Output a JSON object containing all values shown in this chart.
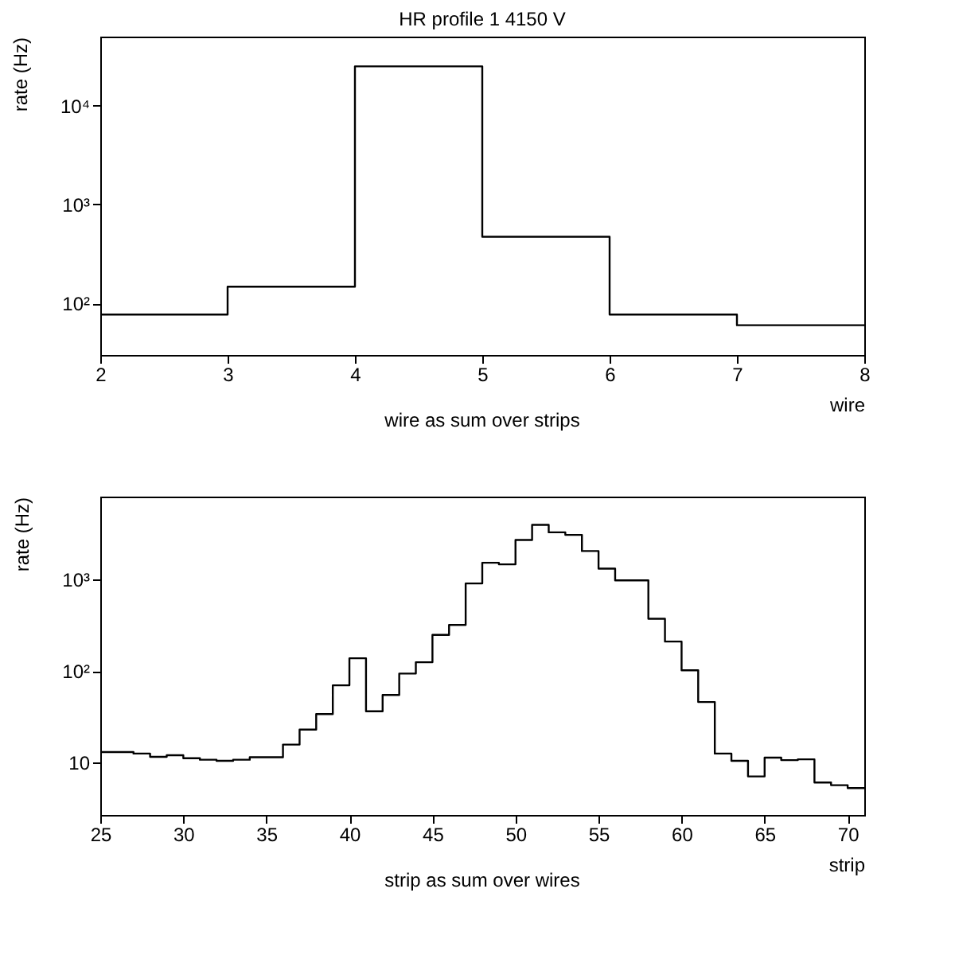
{
  "chart_data": [
    {
      "type": "histogram",
      "title": "HR profile 1 4150 V",
      "xlabel": "wire",
      "ylabel": "rate (Hz)",
      "annotations": [
        "wire as sum over strips"
      ],
      "log": "y",
      "bins": [
        2,
        3,
        4,
        5,
        6,
        7,
        8
      ],
      "values": [
        77,
        147,
        25000,
        471,
        77,
        60
      ],
      "xlim": [
        2,
        8
      ],
      "xticks": [
        2,
        3,
        4,
        5,
        6,
        7,
        8
      ],
      "ylim": [
        30,
        50000
      ],
      "yticks": [
        {
          "value": 100,
          "label": "10²"
        },
        {
          "value": 1000,
          "label": "10³"
        },
        {
          "value": 10000,
          "label": "10⁴"
        }
      ],
      "color": "#000000"
    },
    {
      "type": "histogram",
      "xlabel": "strip",
      "ylabel": "rate (Hz)",
      "annotations": [
        "strip as sum over wires"
      ],
      "log": "y",
      "bins": [
        25,
        26,
        27,
        28,
        29,
        30,
        31,
        32,
        33,
        34,
        35,
        36,
        37,
        38,
        39,
        40,
        41,
        42,
        43,
        44,
        45,
        46,
        47,
        48,
        49,
        50,
        51,
        52,
        53,
        54,
        55,
        56,
        57,
        58,
        59,
        60,
        61,
        62,
        63,
        64,
        65,
        66,
        67,
        68,
        69,
        70,
        71
      ],
      "values": [
        13.1,
        13.1,
        12.6,
        11.6,
        12.1,
        11.2,
        10.8,
        10.5,
        10.8,
        11.5,
        11.5,
        15.8,
        23,
        34,
        70,
        138,
        36.5,
        55,
        94,
        125,
        248,
        319,
        904,
        1520,
        1460,
        2690,
        3940,
        3260,
        3060,
        2040,
        1310,
        975,
        975,
        372,
        210,
        102,
        46,
        12.6,
        10.5,
        7.1,
        11.4,
        10.7,
        10.9,
        6.1,
        5.7,
        5.3
      ],
      "xlim": [
        25,
        71
      ],
      "xticks": [
        25,
        30,
        35,
        40,
        45,
        50,
        55,
        60,
        65,
        70
      ],
      "ylim": [
        2.7,
        8000
      ],
      "yticks": [
        10,
        {
          "value": 100,
          "label": "10²"
        },
        {
          "value": 1000,
          "label": "10³"
        }
      ],
      "color": "#000000"
    }
  ]
}
